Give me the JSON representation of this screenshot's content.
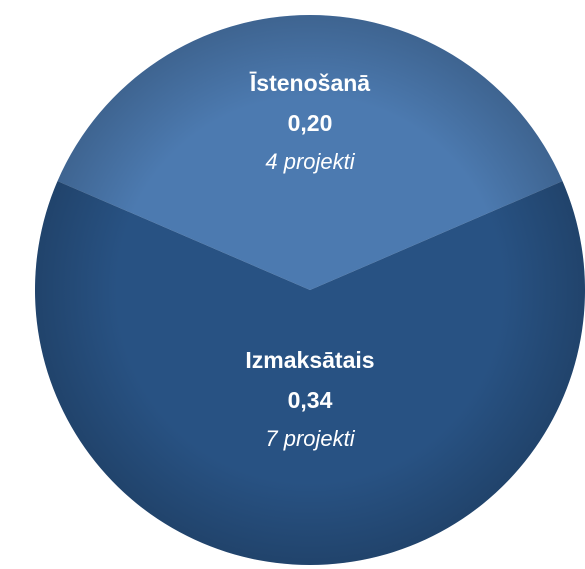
{
  "chart_data": {
    "type": "pie",
    "categories": [
      "Īstenošanā",
      "Izmaksātais"
    ],
    "values": [
      0.2,
      0.34
    ],
    "value_labels": [
      "0,20",
      "0,34"
    ],
    "sublabels": [
      "4 projekti",
      "7 projekti"
    ],
    "colors": [
      "#4c7ab0",
      "#285283"
    ]
  }
}
